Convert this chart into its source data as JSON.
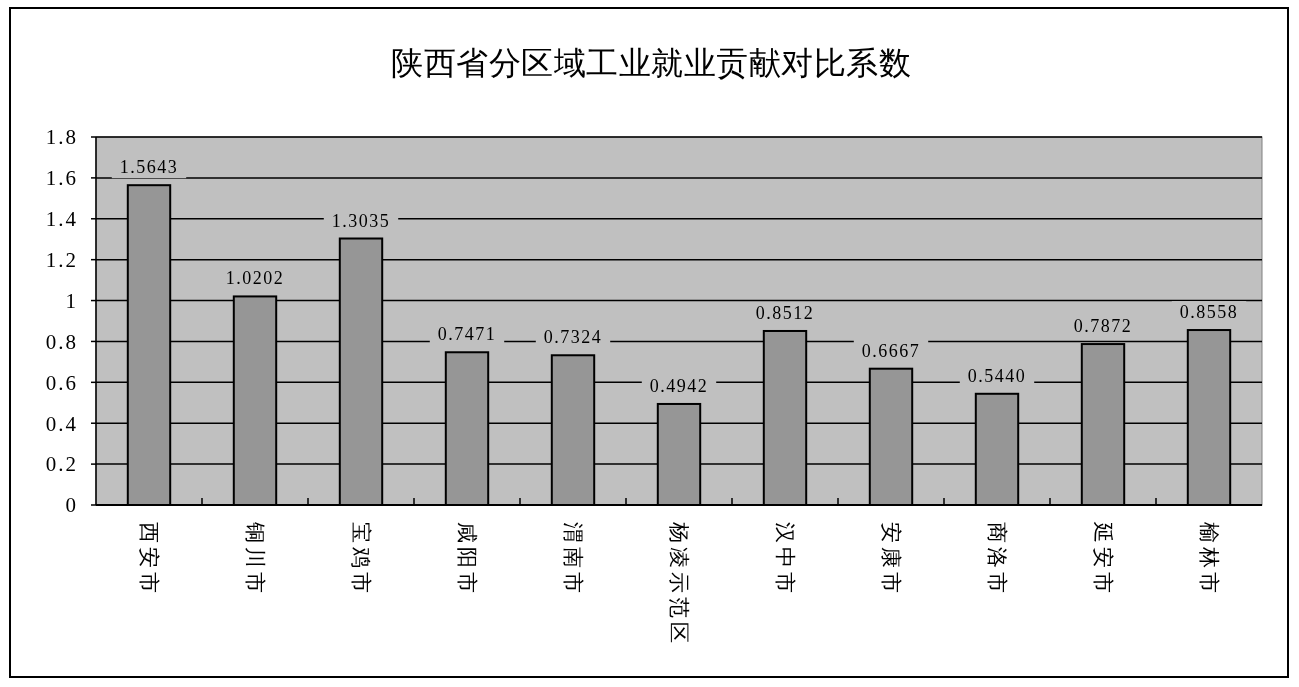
{
  "chart_data": {
    "type": "bar",
    "title": "陕西省分区域工业就业贡献对比系数",
    "categories": [
      "西安市",
      "铜川市",
      "宝鸡市",
      "咸阳市",
      "渭南市",
      "杨凌示范区",
      "汉中市",
      "安康市",
      "商洛市",
      "延安市",
      "榆林市"
    ],
    "values": [
      1.5643,
      1.0202,
      1.3035,
      0.7471,
      0.7324,
      0.4942,
      0.8512,
      0.6667,
      0.544,
      0.7872,
      0.8558
    ],
    "value_labels": [
      "1.5643",
      "1.0202",
      "1.3035",
      "0.7471",
      "0.7324",
      "0.4942",
      "0.8512",
      "0.6667",
      "0.5440",
      "0.7872",
      "0.8558"
    ],
    "color": "#969696",
    "ylim": [
      0,
      1.8
    ],
    "yticks": [
      0,
      0.2,
      0.4,
      0.6,
      0.8,
      1,
      1.2,
      1.4,
      1.6,
      1.8
    ],
    "grid": "y"
  }
}
